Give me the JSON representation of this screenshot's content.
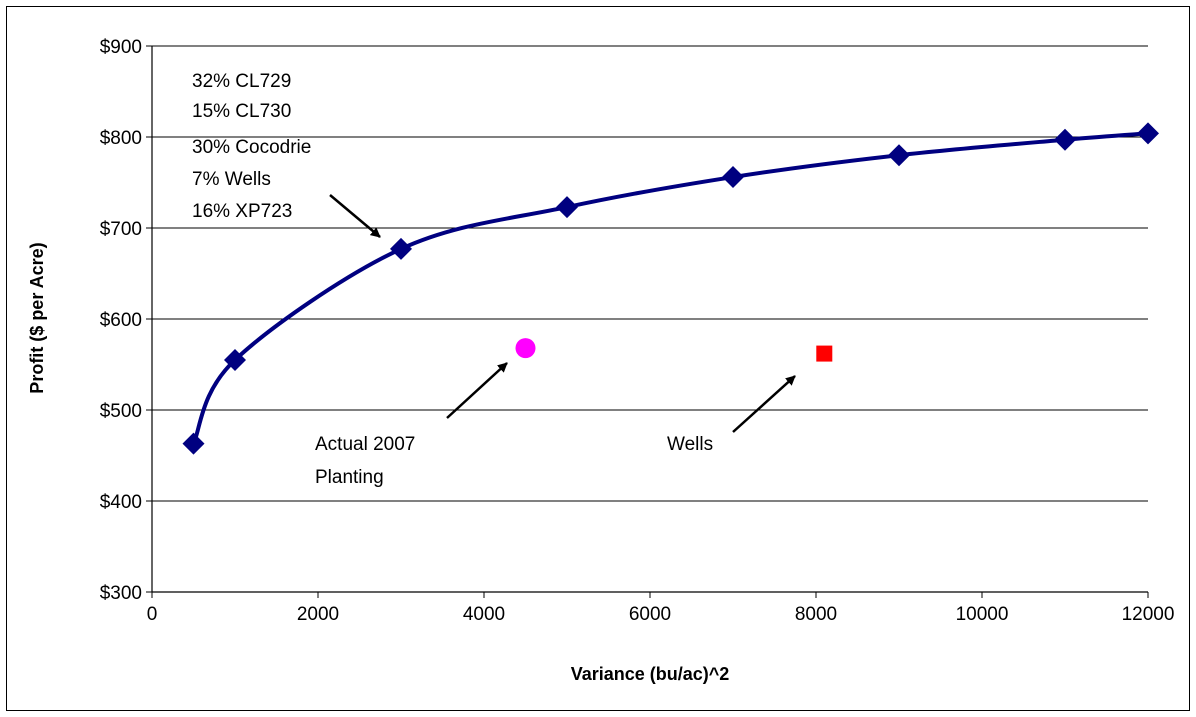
{
  "chart_data": {
    "type": "scatter",
    "title": "",
    "xlabel": "Variance (bu/ac)^2",
    "ylabel": "Profit ($ per Acre)",
    "xlim": [
      0,
      12000
    ],
    "ylim": [
      300,
      900
    ],
    "x_ticks": [
      "0",
      "2000",
      "4000",
      "6000",
      "8000",
      "10000",
      "12000"
    ],
    "y_ticks": [
      "$300",
      "$400",
      "$500",
      "$600",
      "$700",
      "$800",
      "$900"
    ],
    "grid": "horizontal",
    "legend": "none",
    "series": [
      {
        "kind": "line-with-markers",
        "marker": "diamond",
        "color": "#000080",
        "x": [
          500,
          1000,
          3000,
          5000,
          7000,
          9000,
          11000,
          12000
        ],
        "y": [
          463,
          555,
          677,
          723,
          756,
          780,
          797,
          804
        ]
      },
      {
        "kind": "point",
        "marker": "circle",
        "color": "#FF00FF",
        "x": [
          4500
        ],
        "y": [
          568
        ]
      },
      {
        "kind": "point",
        "marker": "square",
        "color": "#FF0000",
        "x": [
          8100
        ],
        "y": [
          562
        ]
      }
    ],
    "annotations": {
      "portfolio": [
        "32% CL729",
        "15% CL730",
        "30% Cocodrie",
        "7% Wells",
        "16% XP723"
      ],
      "actual": [
        "Actual 2007",
        "Planting"
      ],
      "wells": "Wells"
    }
  }
}
